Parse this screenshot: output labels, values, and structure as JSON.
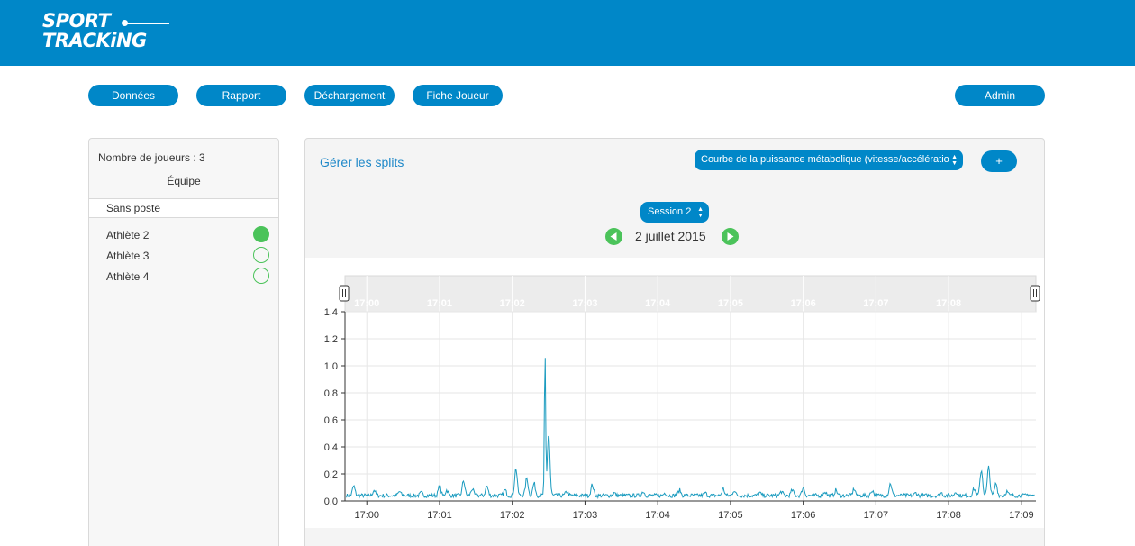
{
  "header": {
    "logo_line1": "SPORT",
    "logo_line2": "TRACKiNG"
  },
  "nav": {
    "donnees": "Données",
    "rapport": "Rapport",
    "dechargement": "Déchargement",
    "fiche_joueur": "Fiche Joueur",
    "admin": "Admin"
  },
  "sidebar": {
    "player_count": "Nombre de joueurs : 3",
    "team_label": "Équipe",
    "group_label": "Sans poste",
    "athletes": [
      {
        "name": "Athlète 2",
        "selected": true
      },
      {
        "name": "Athlète 3",
        "selected": false
      },
      {
        "name": "Athlète 4",
        "selected": false
      }
    ]
  },
  "toolbar": {
    "manage_splits": "Gérer les splits",
    "curve_select": "Courbe de la puissance métabolique (vitesse/accélératio",
    "add_button": "+",
    "session_select": "Session 2",
    "date": "2 juillet 2015"
  },
  "colors": {
    "brand": "#0087c8",
    "status_on": "#4bc35a",
    "line": "#1a9bbf"
  },
  "chart_data": {
    "type": "line",
    "x_unit": "time",
    "x_ticks": [
      "17:00",
      "17:01",
      "17:02",
      "17:03",
      "17:04",
      "17:05",
      "17:06",
      "17:07",
      "17:08",
      "17:09"
    ],
    "navigator_ticks": [
      "17:00",
      "17:01",
      "17:02",
      "17:03",
      "17:04",
      "17:05",
      "17:06",
      "17:07",
      "17:08"
    ],
    "y_ticks": [
      "0.0",
      "0.2",
      "0.4",
      "0.6",
      "0.8",
      "1.0",
      "1.2",
      "1.4"
    ],
    "ylim": [
      0,
      1.4
    ],
    "xlim_minutes": [
      -0.3,
      9.2
    ],
    "grid": true,
    "series": [
      {
        "baseline": 0.04,
        "peaks": [
          [
            -0.18,
            0.11
          ],
          [
            0.1,
            0.08
          ],
          [
            0.45,
            0.07
          ],
          [
            0.75,
            0.06
          ],
          [
            1.0,
            0.11
          ],
          [
            1.1,
            0.08
          ],
          [
            1.33,
            0.15
          ],
          [
            1.45,
            0.09
          ],
          [
            1.65,
            0.11
          ],
          [
            1.9,
            0.08
          ],
          [
            2.05,
            0.24
          ],
          [
            2.2,
            0.17
          ],
          [
            2.3,
            0.13
          ],
          [
            2.45,
            1.09
          ],
          [
            2.5,
            0.5
          ],
          [
            2.75,
            0.07
          ],
          [
            3.1,
            0.12
          ],
          [
            3.4,
            0.06
          ],
          [
            3.8,
            0.07
          ],
          [
            4.1,
            0.06
          ],
          [
            4.3,
            0.08
          ],
          [
            4.65,
            0.06
          ],
          [
            4.9,
            0.09
          ],
          [
            5.05,
            0.08
          ],
          [
            5.4,
            0.06
          ],
          [
            5.7,
            0.07
          ],
          [
            5.85,
            0.08
          ],
          [
            6.0,
            0.1
          ],
          [
            6.3,
            0.07
          ],
          [
            6.45,
            0.08
          ],
          [
            6.7,
            0.09
          ],
          [
            6.95,
            0.08
          ],
          [
            7.2,
            0.13
          ],
          [
            7.55,
            0.06
          ],
          [
            7.9,
            0.06
          ],
          [
            8.1,
            0.07
          ],
          [
            8.35,
            0.09
          ],
          [
            8.45,
            0.23
          ],
          [
            8.55,
            0.25
          ],
          [
            8.65,
            0.13
          ],
          [
            8.8,
            0.07
          ],
          [
            9.1,
            0.05
          ]
        ]
      }
    ]
  }
}
